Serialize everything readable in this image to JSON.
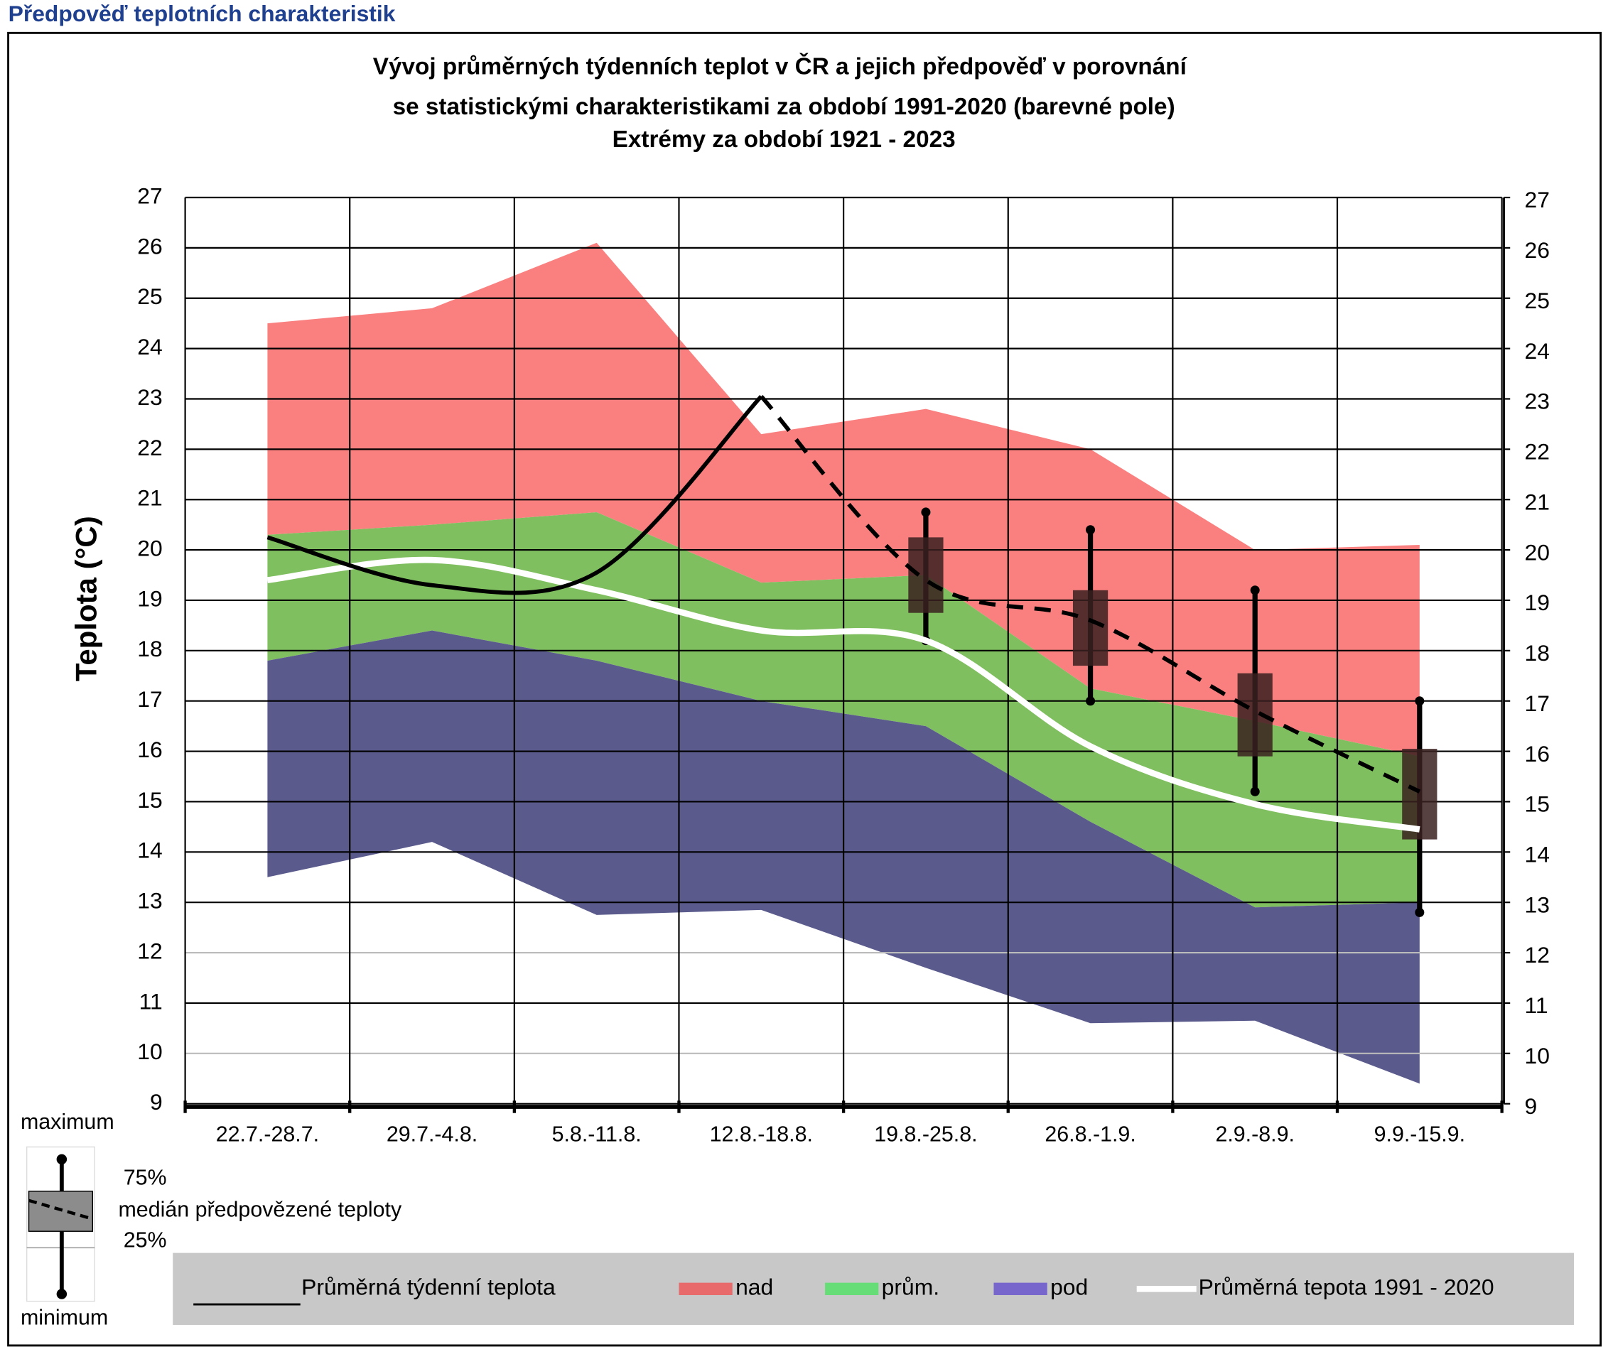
{
  "header": "Předpověď teplotních charakteristik",
  "chart_data": {
    "type": "band-line",
    "title": [
      "Vývoj průměrných týdenních teplot v ČR a jejich předpověď v porovnání",
      "se statistickými charakteristikami za období 1991-2020 (barevné pole)",
      "Extrémy za období 1921 - 2023"
    ],
    "y_label": "Teplota (°C)",
    "categories": [
      "22.7.-28.7.",
      "29.7.-4.8.",
      "5.8.-11.8.",
      "12.8.-18.8.",
      "19.8.-25.8.",
      "26.8.-1.9.",
      "2.9.-8.9.",
      "9.9.-15.9."
    ],
    "ylim": [
      9,
      27
    ],
    "yticks": [
      9,
      10,
      11,
      12,
      13,
      14,
      15,
      16,
      17,
      18,
      19,
      20,
      21,
      22,
      23,
      24,
      25,
      26,
      27
    ],
    "y2lim": [
      9,
      27
    ],
    "y2ticks": [
      9,
      10,
      11,
      12,
      13,
      14,
      15,
      16,
      17,
      18,
      19,
      20,
      21,
      22,
      23,
      24,
      25,
      26,
      27
    ],
    "grid": true,
    "bands": [
      {
        "name": "nad",
        "color": "#fa8080",
        "legend_color": "#e86a6a",
        "lower": [
          20.3,
          20.5,
          20.75,
          19.35,
          19.5,
          17.25,
          16.6,
          15.9
        ],
        "upper": [
          24.5,
          24.8,
          26.1,
          22.3,
          22.8,
          22.0,
          20.0,
          20.1
        ]
      },
      {
        "name": "prům.",
        "color": "#80bf60",
        "legend_color": "#66dd77",
        "lower": [
          17.8,
          18.4,
          17.8,
          17.0,
          16.5,
          14.6,
          12.9,
          13.0
        ],
        "upper": [
          20.3,
          20.5,
          20.75,
          19.35,
          19.5,
          17.25,
          16.6,
          15.9
        ]
      },
      {
        "name": "pod",
        "color": "#5a5a8c",
        "legend_color": "#7766cc",
        "lower": [
          13.5,
          14.2,
          12.75,
          12.85,
          11.7,
          10.6,
          10.65,
          9.4
        ],
        "upper": [
          17.8,
          18.4,
          17.8,
          17.0,
          16.5,
          14.6,
          12.9,
          13.0
        ]
      }
    ],
    "series": [
      {
        "name": "Průměrná tepota 1991 - 2020",
        "color": "#ffffff",
        "values": [
          19.4,
          19.8,
          19.2,
          18.4,
          18.2,
          16.1,
          14.95,
          14.45
        ]
      },
      {
        "name": "Průměrná týdenní teplota",
        "color": "#000000",
        "values": [
          20.25,
          19.3,
          19.55,
          23.05,
          null,
          null,
          null,
          null
        ]
      }
    ],
    "forecast": {
      "name": "medián předpovězené teploty",
      "color": "#000000",
      "box_color": "#3a2020",
      "median": [
        null,
        null,
        null,
        23.05,
        19.4,
        18.6,
        16.8,
        15.2
      ],
      "min": [
        null,
        null,
        null,
        null,
        18.2,
        17.0,
        15.2,
        12.8
      ],
      "q1": [
        null,
        null,
        null,
        null,
        18.75,
        17.7,
        15.9,
        14.25
      ],
      "q3": [
        null,
        null,
        null,
        null,
        20.25,
        19.2,
        17.55,
        16.05
      ],
      "max": [
        null,
        null,
        null,
        null,
        20.75,
        20.4,
        19.2,
        17.0
      ]
    },
    "box_legend": {
      "max": "maximum",
      "q3": "75%",
      "median": "medián předpovězené teploty",
      "q1": "25%",
      "min": "minimum"
    }
  }
}
